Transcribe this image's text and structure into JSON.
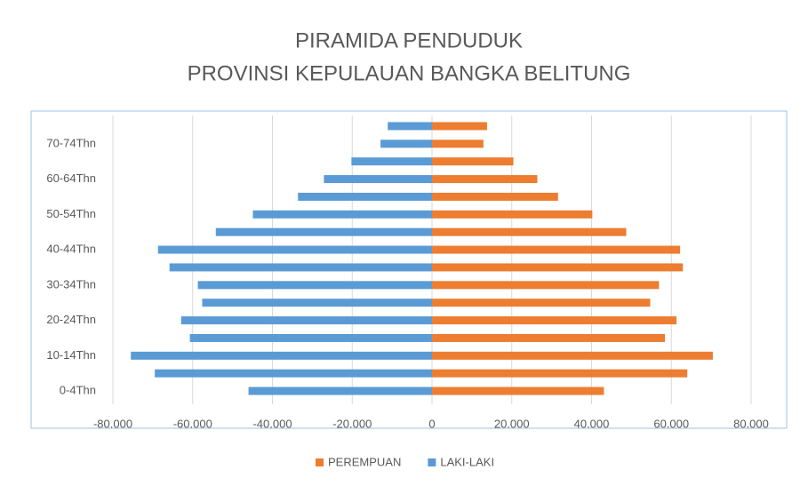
{
  "chart_data": {
    "type": "bar",
    "title": [
      "PIRAMIDA PENDUDUK",
      "PROVINSI KEPULAUAN BANGKA BELITUNG"
    ],
    "categories": [
      "0-4Thn",
      null,
      "10-14Thn",
      null,
      "20-24Thn",
      null,
      "30-34Thn",
      null,
      "40-44Thn",
      null,
      "50-54Thn",
      null,
      "60-64Thn",
      null,
      "70-74Thn",
      null
    ],
    "series": [
      {
        "name": "PEREMPUAN",
        "color": "#ed7d31",
        "values": [
          43100,
          64000,
          70400,
          58400,
          61300,
          54700,
          56900,
          62900,
          62200,
          48700,
          40200,
          31600,
          26400,
          20400,
          12900,
          13800
        ]
      },
      {
        "name": "LAKI-LAKI",
        "color": "#5b9bd5",
        "values": [
          -46000,
          -69500,
          -75500,
          -60700,
          -62900,
          -57600,
          -58700,
          -65800,
          -68700,
          -54200,
          -44900,
          -33600,
          -27100,
          -20200,
          -12900,
          -11100
        ]
      }
    ],
    "xlim": [
      -80000,
      80000
    ],
    "xticks": [
      {
        "value": -80000,
        "label": "-80.000"
      },
      {
        "value": -60000,
        "label": "-60.000"
      },
      {
        "value": -40000,
        "label": "-40.000"
      },
      {
        "value": -20000,
        "label": "-20.000"
      },
      0,
      {
        "value": 20000,
        "label": "20.000"
      },
      {
        "value": 40000,
        "label": "40.000"
      },
      {
        "value": 60000,
        "label": "60.000"
      },
      {
        "value": 80000,
        "label": "80.000"
      }
    ],
    "grid": true,
    "legend": "bottom"
  }
}
